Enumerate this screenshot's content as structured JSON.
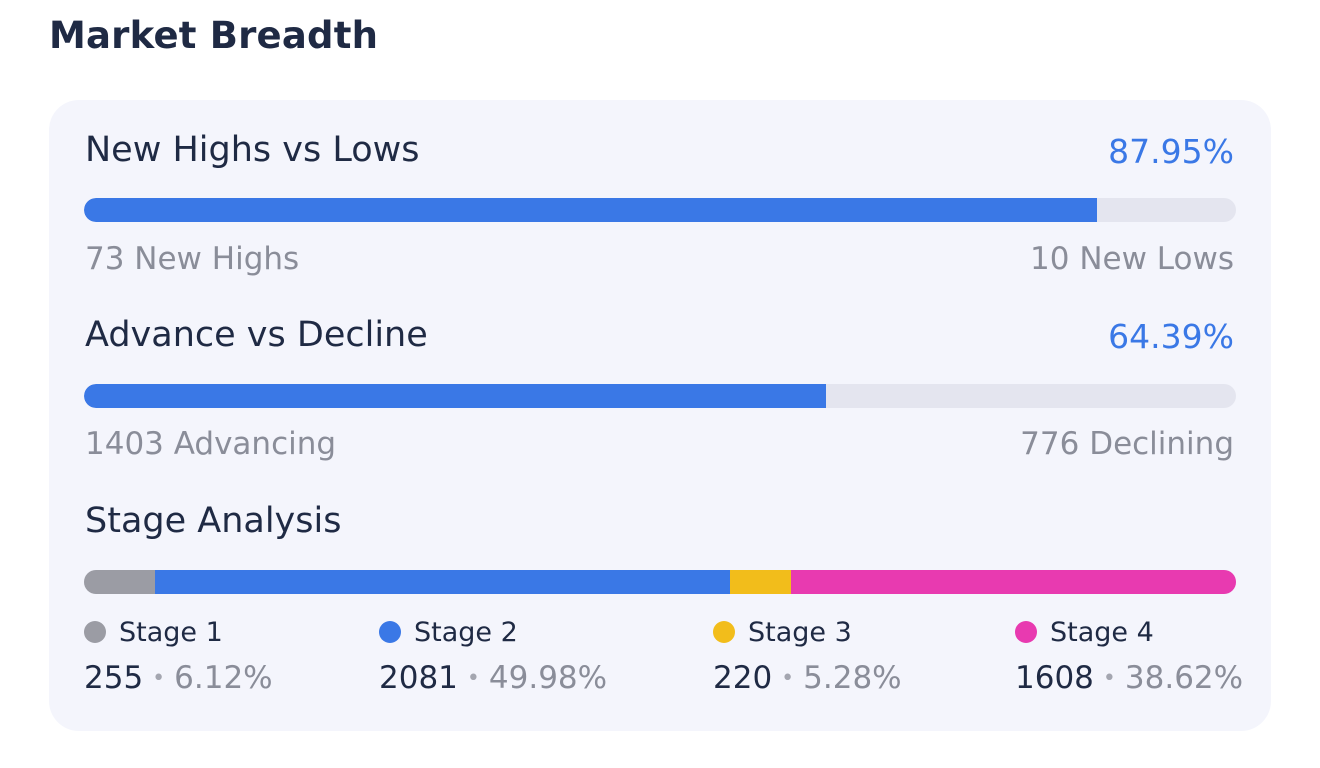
{
  "title": "Market Breadth",
  "metrics": [
    {
      "name": "New Highs vs Lows",
      "percent": "87.95%",
      "fill_fraction": 0.8795,
      "left_text": "73 New Highs",
      "right_text": "10 New Lows"
    },
    {
      "name": "Advance vs Decline",
      "percent": "64.39%",
      "fill_fraction": 0.6439,
      "left_text": "1403 Advancing",
      "right_text": "776 Declining"
    }
  ],
  "stage_analysis": {
    "title": "Stage Analysis",
    "stages": [
      {
        "label": "Stage 1",
        "count": "255",
        "percent": "6.12%",
        "fraction": 0.0612,
        "color": "#9b9ca4"
      },
      {
        "label": "Stage 2",
        "count": "2081",
        "percent": "49.98%",
        "fraction": 0.4998,
        "color": "#3a78e6"
      },
      {
        "label": "Stage 3",
        "count": "220",
        "percent": "5.28%",
        "fraction": 0.0528,
        "color": "#f2bd1b"
      },
      {
        "label": "Stage 4",
        "count": "1608",
        "percent": "38.62%",
        "fraction": 0.3862,
        "color": "#e83ab0"
      }
    ],
    "separator": "•"
  },
  "colors": {
    "accent": "#3a78e6",
    "track": "#e4e5ef",
    "card_background": "#f4f5fc"
  }
}
